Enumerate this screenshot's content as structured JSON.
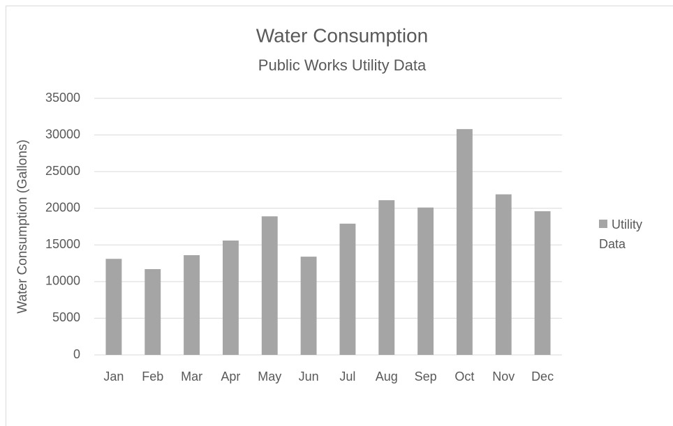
{
  "chart_data": {
    "type": "bar",
    "title": "Water Consumption",
    "subtitle": "Public Works Utility Data",
    "y_label": "Water Consumption (Gallons)",
    "categories": [
      "Jan",
      "Feb",
      "Mar",
      "Apr",
      "May",
      "Jun",
      "Jul",
      "Aug",
      "Sep",
      "Oct",
      "Nov",
      "Dec"
    ],
    "series": [
      {
        "name": "Utility Data",
        "color": "#a5a5a5",
        "values": [
          13100,
          11700,
          13600,
          15600,
          18900,
          13400,
          17900,
          21100,
          20100,
          30800,
          21900,
          19600
        ]
      }
    ],
    "ylim": [
      0,
      35000
    ],
    "yticks": [
      0,
      5000,
      10000,
      15000,
      20000,
      25000,
      30000,
      35000
    ],
    "grid": true,
    "legend": "right"
  }
}
